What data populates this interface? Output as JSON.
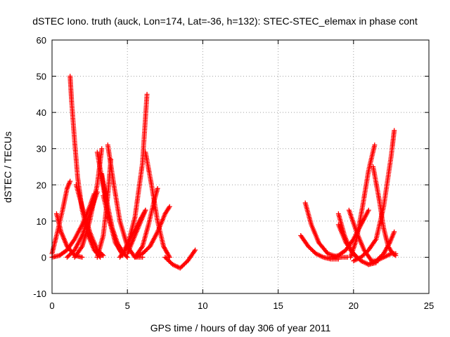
{
  "chart_data": {
    "type": "scatter",
    "title": "dSTEC Iono. truth (auck, Lon=174, Lat=-36, h=132): STEC-STEC_elemax in phase cont",
    "xlabel": "GPS time / hours of day 306 of year 2011",
    "ylabel": "dSTEC  / TECUs",
    "xlim": [
      0,
      25
    ],
    "ylim": [
      -10,
      60
    ],
    "xticks": [
      "0",
      "5",
      "10",
      "15",
      "20",
      "25"
    ],
    "yticks": [
      "-10",
      "0",
      "10",
      "20",
      "30",
      "40",
      "50",
      "60"
    ],
    "grid": true,
    "marker": "+",
    "color": "#ff0000",
    "series": [
      {
        "x": [
          0.0,
          0.3,
          0.7,
          1.0,
          1.2
        ],
        "y": [
          1,
          6,
          13,
          19,
          21
        ]
      },
      {
        "x": [
          0.3,
          0.6,
          1.0,
          1.5,
          2.0
        ],
        "y": [
          12,
          7,
          3,
          0.5,
          0
        ]
      },
      {
        "x": [
          1.2,
          1.3,
          1.5,
          1.7,
          2.0,
          2.4,
          2.8,
          3.2
        ],
        "y": [
          50,
          43,
          32,
          22,
          13,
          6,
          2,
          0
        ]
      },
      {
        "x": [
          1.6,
          2.0,
          2.5,
          3.0,
          3.4
        ],
        "y": [
          20,
          14,
          7,
          2,
          0.5
        ]
      },
      {
        "x": [
          0.0,
          0.5,
          1.0,
          1.5,
          2.0,
          2.5,
          2.8
        ],
        "y": [
          0,
          0.5,
          2,
          5,
          9,
          14,
          17.5
        ]
      },
      {
        "x": [
          1.0,
          1.5,
          2.0,
          2.5,
          3.0
        ],
        "y": [
          0,
          2,
          6,
          12,
          18
        ]
      },
      {
        "x": [
          1.5,
          2.0,
          2.5,
          3.0,
          3.3
        ],
        "y": [
          0,
          3,
          10,
          20,
          30
        ]
      },
      {
        "x": [
          3.0,
          3.3,
          3.7,
          4.2,
          4.7
        ],
        "y": [
          29,
          22,
          12,
          4,
          0.5
        ]
      },
      {
        "x": [
          3.3,
          3.6,
          4.0,
          4.5,
          5.0
        ],
        "y": [
          23,
          16,
          8,
          2,
          0
        ]
      },
      {
        "x": [
          3.4,
          3.8,
          4.3,
          4.8
        ],
        "y": [
          17,
          10,
          4,
          1
        ]
      },
      {
        "x": [
          3.0,
          3.4,
          3.7,
          3.9
        ],
        "y": [
          0,
          6,
          17,
          27
        ]
      },
      {
        "x": [
          3.7,
          4.1,
          4.5,
          5.0,
          5.5,
          6.0
        ],
        "y": [
          31,
          20,
          10,
          3,
          0,
          0
        ]
      },
      {
        "x": [
          4.5,
          5.0,
          5.5,
          6.0,
          6.3
        ],
        "y": [
          0,
          3,
          11,
          26,
          45
        ]
      },
      {
        "x": [
          5.0,
          5.4,
          5.8,
          6.2
        ],
        "y": [
          1,
          5,
          9,
          13
        ]
      },
      {
        "x": [
          4.8,
          5.3,
          5.8,
          6.2
        ],
        "y": [
          2,
          6,
          10,
          13
        ]
      },
      {
        "x": [
          5.5,
          6.0,
          6.4,
          6.8,
          7.0
        ],
        "y": [
          0,
          3,
          9,
          16,
          19
        ]
      },
      {
        "x": [
          6.2,
          6.6,
          7.0,
          7.4,
          7.8
        ],
        "y": [
          29,
          20,
          10,
          3,
          0
        ]
      },
      {
        "x": [
          5.5,
          6.0,
          6.5,
          7.0,
          7.5,
          7.8
        ],
        "y": [
          0,
          1,
          3,
          7,
          12,
          14
        ]
      },
      {
        "x": [
          7.5,
          8.0,
          8.5,
          9.0,
          9.5
        ],
        "y": [
          0,
          -2,
          -3,
          -1,
          2
        ]
      },
      {
        "x": [
          16.5,
          17.0,
          17.5,
          18.0,
          18.5,
          19.0
        ],
        "y": [
          6,
          3,
          1,
          0,
          -0.5,
          -0.5
        ]
      },
      {
        "x": [
          16.8,
          17.2,
          17.7,
          18.3,
          19.0,
          19.6
        ],
        "y": [
          15,
          9,
          4,
          1,
          0,
          0
        ]
      },
      {
        "x": [
          18.5,
          19.0,
          19.5,
          20.0,
          20.5,
          21.0
        ],
        "y": [
          0,
          0.5,
          2,
          5,
          9,
          13
        ]
      },
      {
        "x": [
          19.0,
          19.4,
          19.8,
          20.2
        ],
        "y": [
          12,
          6,
          2,
          0
        ]
      },
      {
        "x": [
          19.0,
          19.5,
          20.0,
          20.5,
          21.0,
          21.5
        ],
        "y": [
          9,
          4,
          1,
          -1,
          -2,
          -1.5
        ]
      },
      {
        "x": [
          19.7,
          20.2,
          20.7,
          21.2,
          21.6
        ],
        "y": [
          13,
          7,
          2,
          -1,
          -1
        ]
      },
      {
        "x": [
          19.8,
          20.2,
          20.6,
          21.0,
          21.4
        ],
        "y": [
          0,
          5,
          14,
          24,
          31
        ]
      },
      {
        "x": [
          20.0,
          20.5,
          21.0,
          21.5,
          22.0,
          22.5,
          22.7
        ],
        "y": [
          -1,
          0,
          2,
          5,
          14,
          28,
          35
        ]
      },
      {
        "x": [
          21.3,
          21.7,
          22.0,
          22.3,
          22.6,
          22.8
        ],
        "y": [
          25,
          16,
          8,
          3,
          1,
          0.5
        ]
      },
      {
        "x": [
          21.5,
          22.0,
          22.4,
          22.7
        ],
        "y": [
          -1,
          1,
          4,
          7
        ]
      },
      {
        "x": [
          21.0,
          21.5,
          22.0,
          22.5,
          22.8
        ],
        "y": [
          -2,
          -1,
          0,
          1,
          1
        ]
      }
    ]
  }
}
